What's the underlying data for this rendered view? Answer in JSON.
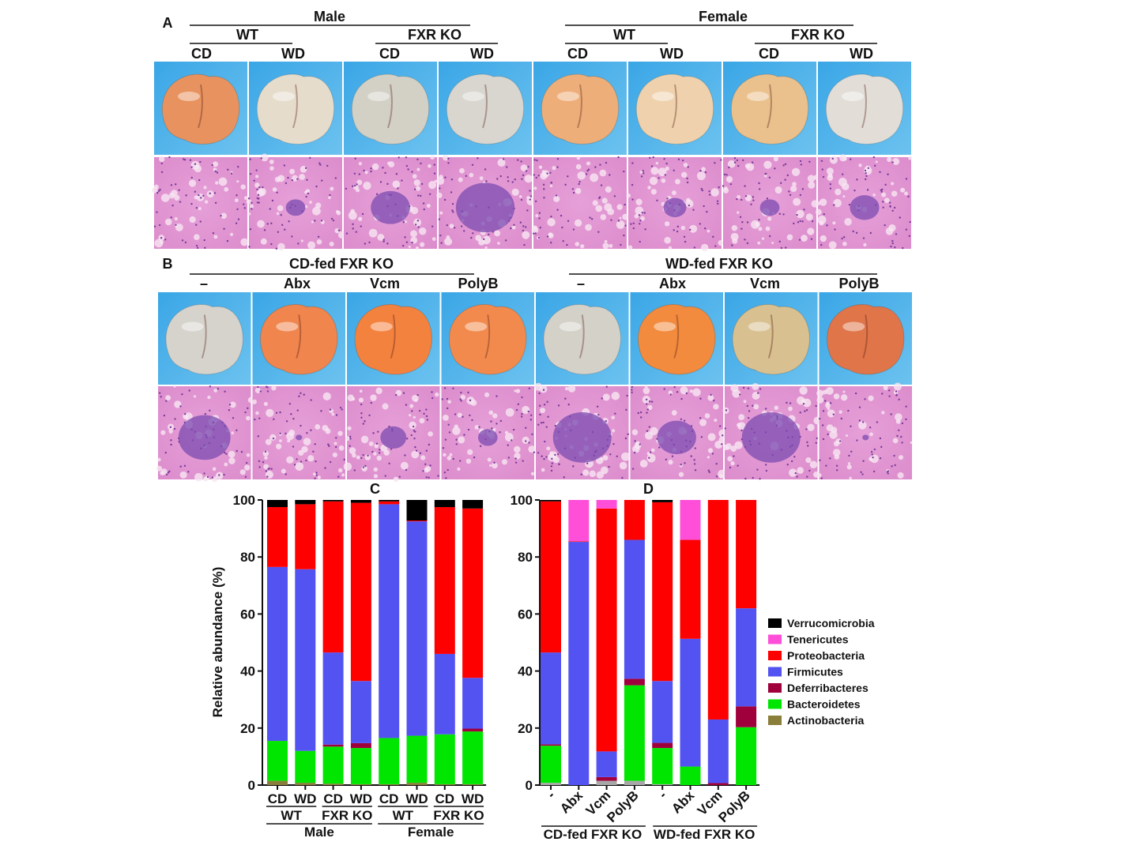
{
  "panel_a": {
    "label": "A",
    "groups": [
      {
        "sex": "Male",
        "genotypes": [
          {
            "name": "WT",
            "diets": [
              "CD",
              "WD"
            ]
          },
          {
            "name": "FXR KO",
            "diets": [
              "CD",
              "WD"
            ]
          }
        ]
      },
      {
        "sex": "Female",
        "genotypes": [
          {
            "name": "WT",
            "diets": [
              "CD",
              "WD"
            ]
          },
          {
            "name": "FXR KO",
            "diets": [
              "CD",
              "WD"
            ]
          }
        ]
      }
    ],
    "liver_tones": [
      "#e8935f",
      "#e6dccc",
      "#d3d0c6",
      "#d8d6cf",
      "#eeae79",
      "#efd2ad",
      "#eac08c",
      "#e2ded7"
    ],
    "histology_infiltrate": [
      0,
      0.3,
      0.6,
      0.9,
      0,
      0.35,
      0.3,
      0.45
    ]
  },
  "panel_b": {
    "label": "B",
    "groups": [
      {
        "title": "CD-fed FXR KO",
        "treatments": [
          "–",
          "Abx",
          "Vcm",
          "PolyB"
        ]
      },
      {
        "title": "WD-fed FXR KO",
        "treatments": [
          "–",
          "Abx",
          "Vcm",
          "PolyB"
        ]
      }
    ],
    "liver_tones": [
      "#d6d3cc",
      "#f0854d",
      "#f4823f",
      "#f38a4d",
      "#d4d1c9",
      "#f28b3e",
      "#d8c090",
      "#e0754a"
    ],
    "histology_infiltrate": [
      0.8,
      0.1,
      0.4,
      0.3,
      0.9,
      0.6,
      0.9,
      0.1
    ]
  },
  "legend": [
    {
      "name": "Verrucomicrobia",
      "color": "#000000"
    },
    {
      "name": "Tenericutes",
      "color": "#ff4fd8"
    },
    {
      "name": "Proteobacteria",
      "color": "#ff0000"
    },
    {
      "name": "Firmicutes",
      "color": "#5353f2"
    },
    {
      "name": "Deferribacteres",
      "color": "#a0003c"
    },
    {
      "name": "Bacteroidetes",
      "color": "#00e600"
    },
    {
      "name": "Actinobacteria",
      "color": "#8b7d3a"
    }
  ],
  "chart_data": [
    {
      "type": "bar",
      "stacked": true,
      "title": "C",
      "ylabel": "Relative abundance (%)",
      "ylim": [
        0,
        100
      ],
      "yticks": [
        "0",
        "20",
        "40",
        "60",
        "80",
        "100"
      ],
      "categories": [
        "CD",
        "WD",
        "CD",
        "WD",
        "CD",
        "WD",
        "CD",
        "WD"
      ],
      "group_labels_level1": [
        "WT",
        "FXR KO",
        "WT",
        "FXR KO"
      ],
      "group_labels_level2": [
        "Male",
        "Female"
      ],
      "series": [
        {
          "name": "Actinobacteria",
          "values": [
            1.5,
            0.8,
            0.5,
            0.3,
            0.3,
            0.8,
            0.3,
            0.3
          ]
        },
        {
          "name": "Bacteroidetes",
          "values": [
            14,
            11.2,
            13,
            12.7,
            16.2,
            16.5,
            17.5,
            18.5
          ]
        },
        {
          "name": "Deferribacteres",
          "values": [
            0,
            0,
            0.7,
            1.7,
            0,
            0,
            0,
            1
          ]
        },
        {
          "name": "Firmicutes",
          "values": [
            61,
            63.7,
            32.3,
            21.8,
            82,
            75.2,
            28.2,
            17.8
          ]
        },
        {
          "name": "Proteobacteria",
          "values": [
            21,
            22.8,
            53,
            62.5,
            1,
            0.3,
            51.5,
            59.4
          ]
        },
        {
          "name": "Tenericutes",
          "values": [
            0,
            0,
            0,
            0,
            0,
            0,
            0,
            0
          ]
        },
        {
          "name": "Verrucomicrobia",
          "values": [
            2.5,
            1.5,
            0.5,
            1,
            0.5,
            7.2,
            2.5,
            3
          ]
        }
      ]
    },
    {
      "type": "bar",
      "stacked": true,
      "title": "D",
      "ylabel": "",
      "ylim": [
        0,
        100
      ],
      "yticks": [
        "0",
        "20",
        "40",
        "60",
        "80",
        "100"
      ],
      "categories": [
        "-",
        "Abx",
        "Vcm",
        "PolyB",
        "-",
        "Abx",
        "Vcm",
        "PolyB"
      ],
      "group_labels_level1": [
        "CD-fed FXR KO",
        "WD-fed FXR KO"
      ],
      "series": [
        {
          "name": "Actinobacteria",
          "values": [
            0.8,
            0,
            1.5,
            1.5,
            0.3,
            0,
            0,
            0
          ]
        },
        {
          "name": "Bacteroidetes",
          "values": [
            13,
            0,
            0,
            33.5,
            12.7,
            6.5,
            0,
            20.3
          ]
        },
        {
          "name": "Deferribacteres",
          "values": [
            0.5,
            0,
            1.3,
            2.3,
            1.8,
            0,
            0.7,
            7.3
          ]
        },
        {
          "name": "Firmicutes",
          "values": [
            32.2,
            85.3,
            9,
            48.7,
            21.7,
            44.8,
            22.3,
            34.4
          ]
        },
        {
          "name": "Proteobacteria",
          "values": [
            53,
            0.2,
            85.2,
            14,
            62.7,
            34.7,
            77,
            38
          ]
        },
        {
          "name": "Tenericutes",
          "values": [
            0,
            14.5,
            3,
            0,
            0,
            14,
            0,
            0
          ]
        },
        {
          "name": "Verrucomicrobia",
          "values": [
            0.5,
            0,
            0,
            0,
            0.8,
            0,
            0,
            0
          ]
        }
      ]
    }
  ]
}
